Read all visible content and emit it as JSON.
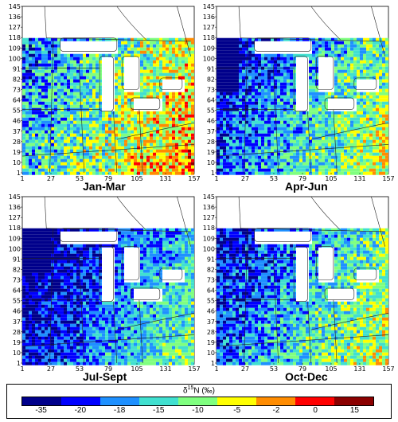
{
  "panels": [
    {
      "label": "Jan-Mar",
      "scheme": 0
    },
    {
      "label": "Apr-Jun",
      "scheme": 1
    },
    {
      "label": "Jul-Sept",
      "scheme": 2
    },
    {
      "label": "Oct-Dec",
      "scheme": 3
    }
  ],
  "axes": {
    "x_ticks": [
      "1",
      "27",
      "53",
      "79",
      "105",
      "131",
      "157"
    ],
    "y_ticks": [
      "1",
      "10",
      "19",
      "28",
      "37",
      "46",
      "55",
      "64",
      "73",
      "82",
      "91",
      "100",
      "109",
      "118",
      "127",
      "136",
      "145"
    ]
  },
  "legend": {
    "title_prefix": "δ",
    "title_sup": "15",
    "title_suffix": "N (‰)",
    "ticks": [
      "-35",
      "-20",
      "-18",
      "-15",
      "-10",
      "-5",
      "-2",
      "0",
      "15"
    ],
    "colors": [
      "#00008b",
      "#0000ff",
      "#1e90ff",
      "#40e0d0",
      "#7fff7f",
      "#ffff00",
      "#ff8c00",
      "#ff0000",
      "#8b0000"
    ]
  }
}
